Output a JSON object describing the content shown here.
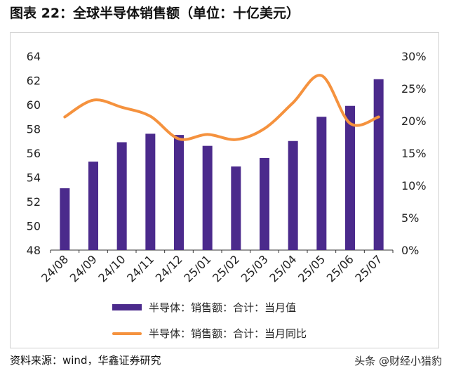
{
  "header": {
    "title": "图表 22：全球半导体销售额（单位：十亿美元）"
  },
  "footer": {
    "source": "资料来源：wind，华鑫证券研究",
    "watermark": "头条 @财经小猎豹"
  },
  "colors": {
    "bar": "#4b2a8c",
    "line": "#f5923e",
    "axis": "#333333"
  },
  "chart_data": {
    "type": "bar",
    "categories": [
      "24/08",
      "24/09",
      "24/10",
      "24/11",
      "24/12",
      "25/01",
      "25/02",
      "25/03",
      "25/04",
      "25/05",
      "25/06",
      "25/07"
    ],
    "series": [
      {
        "name": "半导体：销售额：合计：当月值",
        "type": "bar",
        "axis": "left",
        "values": [
          53.1,
          55.3,
          56.9,
          57.6,
          57.5,
          56.6,
          54.9,
          55.6,
          57.0,
          59.0,
          59.9,
          62.1
        ]
      },
      {
        "name": "半导体：销售额：合计：当月同比",
        "type": "line",
        "axis": "right",
        "values": [
          20.6,
          23.2,
          22.1,
          20.7,
          17.2,
          17.9,
          17.1,
          18.8,
          22.8,
          27.0,
          19.6,
          20.6
        ]
      }
    ],
    "y_left": {
      "min": 48,
      "max": 64,
      "ticks": [
        "48",
        "50",
        "52",
        "54",
        "56",
        "58",
        "60",
        "62",
        "64"
      ]
    },
    "y_right": {
      "min": 0,
      "max": 30,
      "ticks": [
        "0%",
        "5%",
        "10%",
        "15%",
        "20%",
        "25%",
        "30%"
      ]
    },
    "grid": false,
    "legend_position": "bottom"
  }
}
